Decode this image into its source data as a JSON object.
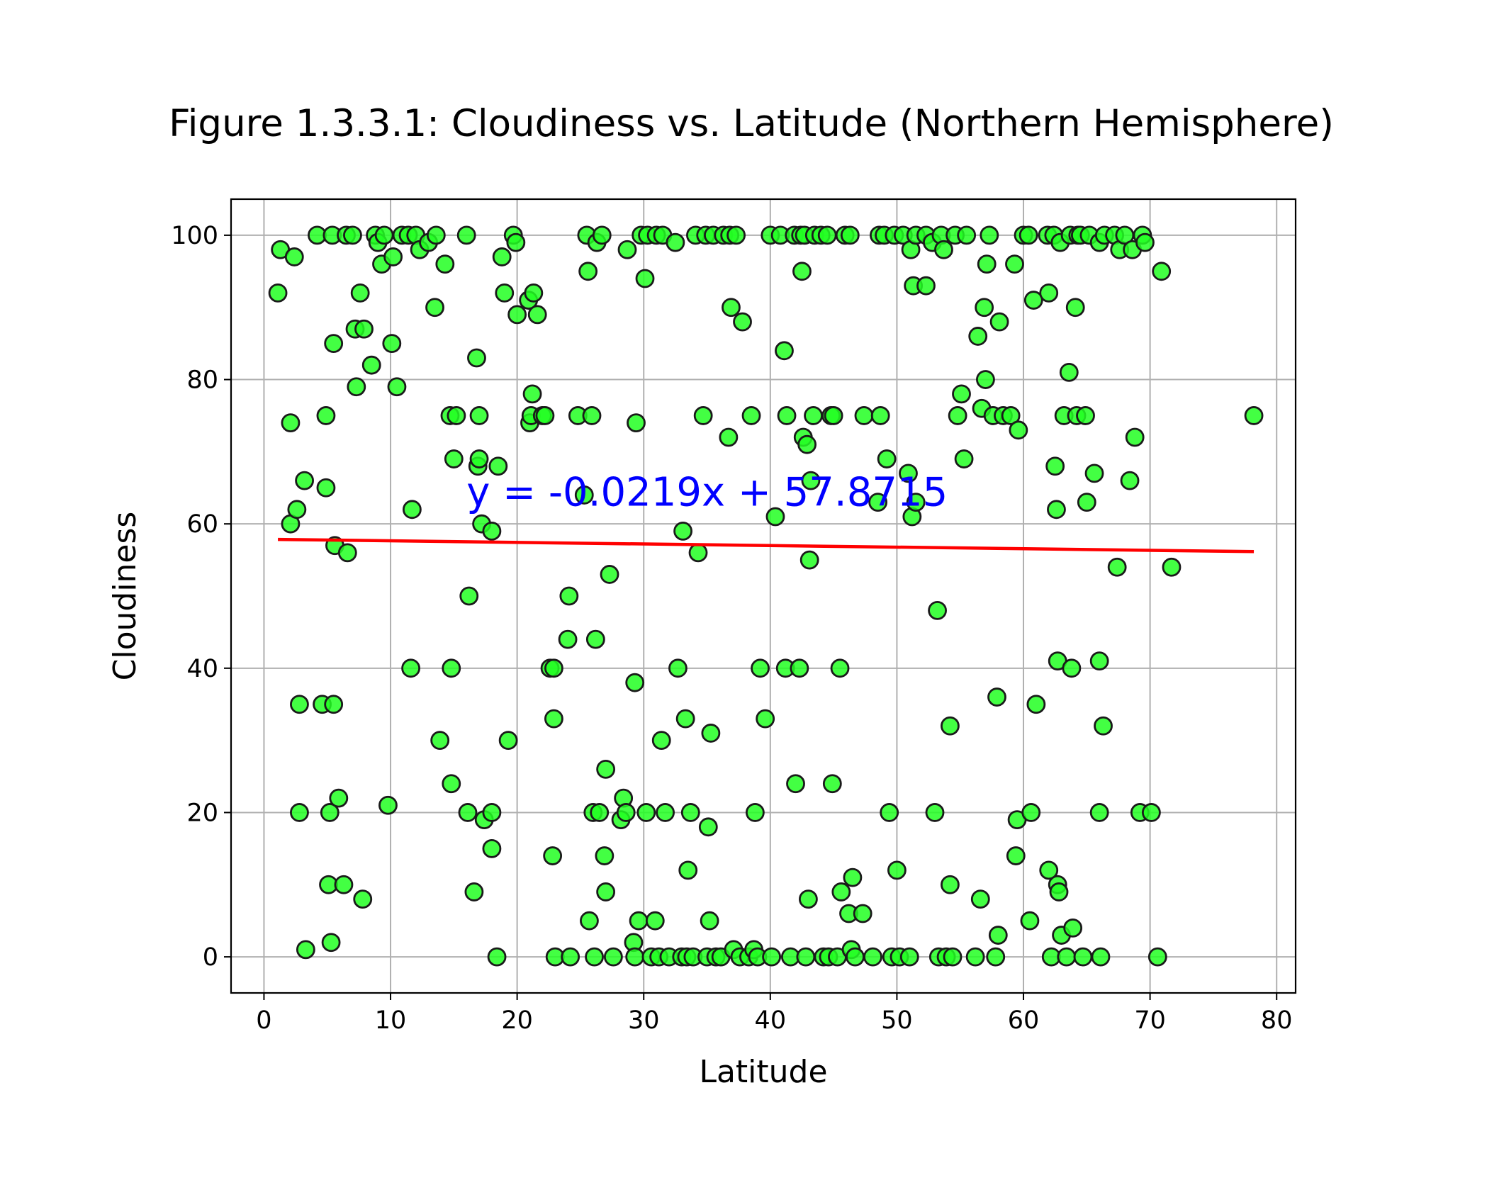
{
  "chart_data": {
    "type": "scatter",
    "title": "Figure 1.3.3.1: Cloudiness vs. Latitude (Northern Hemisphere)",
    "xlabel": "Latitude",
    "ylabel": "Cloudiness",
    "xlim": [
      -2.6,
      81.5
    ],
    "ylim": [
      -5,
      105
    ],
    "xticks": [
      "0",
      "10",
      "20",
      "30",
      "40",
      "50",
      "60",
      "70",
      "80"
    ],
    "yticks": [
      "0",
      "20",
      "40",
      "60",
      "80",
      "100"
    ],
    "grid": true,
    "marker_color": "#22ff22",
    "marker_edge_color": "#1a1a1a",
    "regression": {
      "equation": "y = -0.0219x + 57.8715",
      "slope": -0.0219,
      "intercept": 57.8715,
      "x_range": [
        1.1,
        78.2
      ],
      "label_position": [
        16,
        62.5
      ],
      "color": "#ff0000",
      "label_color": "#0000ff"
    },
    "points": [
      [
        1.1,
        92
      ],
      [
        1.3,
        98
      ],
      [
        2.1,
        74
      ],
      [
        2.1,
        60
      ],
      [
        2.4,
        97
      ],
      [
        2.6,
        62
      ],
      [
        2.8,
        35
      ],
      [
        2.8,
        20
      ],
      [
        3.2,
        66
      ],
      [
        3.3,
        1
      ],
      [
        4.2,
        100
      ],
      [
        4.6,
        35
      ],
      [
        4.9,
        65
      ],
      [
        4.9,
        75
      ],
      [
        5.1,
        10
      ],
      [
        5.2,
        20
      ],
      [
        5.3,
        2
      ],
      [
        5.4,
        100
      ],
      [
        5.5,
        35
      ],
      [
        5.5,
        85
      ],
      [
        5.6,
        57
      ],
      [
        5.9,
        22
      ],
      [
        6.3,
        10
      ],
      [
        6.5,
        100
      ],
      [
        6.6,
        56
      ],
      [
        7.0,
        100
      ],
      [
        7.2,
        87
      ],
      [
        7.3,
        79
      ],
      [
        7.6,
        92
      ],
      [
        7.8,
        8
      ],
      [
        7.9,
        87
      ],
      [
        8.5,
        82
      ],
      [
        8.8,
        100
      ],
      [
        9.0,
        99
      ],
      [
        9.3,
        96
      ],
      [
        9.5,
        100
      ],
      [
        9.8,
        21
      ],
      [
        10.1,
        85
      ],
      [
        10.2,
        97
      ],
      [
        10.5,
        79
      ],
      [
        10.9,
        100
      ],
      [
        11.4,
        100
      ],
      [
        11.6,
        40
      ],
      [
        11.7,
        62
      ],
      [
        12.0,
        100
      ],
      [
        12.3,
        98
      ],
      [
        13.0,
        99
      ],
      [
        13.5,
        90
      ],
      [
        13.6,
        100
      ],
      [
        13.9,
        30
      ],
      [
        14.3,
        96
      ],
      [
        14.7,
        75
      ],
      [
        14.8,
        40
      ],
      [
        14.8,
        24
      ],
      [
        15.0,
        69
      ],
      [
        15.2,
        75
      ],
      [
        16.0,
        100
      ],
      [
        16.1,
        20
      ],
      [
        16.2,
        50
      ],
      [
        16.6,
        9
      ],
      [
        16.8,
        83
      ],
      [
        16.9,
        68
      ],
      [
        17.0,
        69
      ],
      [
        17.0,
        75
      ],
      [
        17.2,
        60
      ],
      [
        17.4,
        19
      ],
      [
        18.0,
        20
      ],
      [
        18.0,
        59
      ],
      [
        18.0,
        15
      ],
      [
        18.4,
        0
      ],
      [
        18.5,
        68
      ],
      [
        18.8,
        97
      ],
      [
        19.0,
        92
      ],
      [
        19.3,
        30
      ],
      [
        19.7,
        100
      ],
      [
        19.9,
        99
      ],
      [
        20.0,
        89
      ],
      [
        20.9,
        91
      ],
      [
        21.0,
        74
      ],
      [
        21.1,
        75
      ],
      [
        21.2,
        78
      ],
      [
        21.3,
        92
      ],
      [
        21.6,
        89
      ],
      [
        22.0,
        75
      ],
      [
        22.2,
        75
      ],
      [
        22.6,
        40
      ],
      [
        22.8,
        14
      ],
      [
        22.9,
        33
      ],
      [
        22.9,
        40
      ],
      [
        23.0,
        0
      ],
      [
        24.0,
        44
      ],
      [
        24.1,
        50
      ],
      [
        24.2,
        0
      ],
      [
        24.8,
        75
      ],
      [
        25.3,
        64
      ],
      [
        25.5,
        100
      ],
      [
        25.6,
        95
      ],
      [
        25.7,
        5
      ],
      [
        25.9,
        75
      ],
      [
        26.0,
        20
      ],
      [
        26.1,
        0
      ],
      [
        26.2,
        44
      ],
      [
        26.3,
        99
      ],
      [
        26.5,
        20
      ],
      [
        26.7,
        100
      ],
      [
        26.9,
        14
      ],
      [
        27.0,
        9
      ],
      [
        27.0,
        26
      ],
      [
        27.3,
        53
      ],
      [
        27.6,
        0
      ],
      [
        28.2,
        19
      ],
      [
        28.4,
        22
      ],
      [
        28.6,
        20
      ],
      [
        28.7,
        98
      ],
      [
        29.2,
        2
      ],
      [
        29.3,
        0
      ],
      [
        29.3,
        38
      ],
      [
        29.4,
        74
      ],
      [
        29.6,
        5
      ],
      [
        29.8,
        100
      ],
      [
        30.1,
        94
      ],
      [
        30.2,
        20
      ],
      [
        30.3,
        100
      ],
      [
        30.6,
        0
      ],
      [
        30.9,
        5
      ],
      [
        31.0,
        100
      ],
      [
        31.2,
        0
      ],
      [
        31.4,
        30
      ],
      [
        31.5,
        100
      ],
      [
        31.7,
        20
      ],
      [
        32.0,
        0
      ],
      [
        32.5,
        99
      ],
      [
        32.7,
        40
      ],
      [
        33.0,
        0
      ],
      [
        33.1,
        59
      ],
      [
        33.3,
        33
      ],
      [
        33.4,
        0
      ],
      [
        33.5,
        12
      ],
      [
        33.7,
        20
      ],
      [
        33.9,
        0
      ],
      [
        34.1,
        100
      ],
      [
        34.3,
        56
      ],
      [
        34.7,
        75
      ],
      [
        34.9,
        100
      ],
      [
        35.0,
        0
      ],
      [
        35.1,
        18
      ],
      [
        35.2,
        5
      ],
      [
        35.3,
        31
      ],
      [
        35.5,
        100
      ],
      [
        35.7,
        0
      ],
      [
        36.1,
        0
      ],
      [
        36.3,
        100
      ],
      [
        36.7,
        72
      ],
      [
        36.8,
        100
      ],
      [
        36.9,
        90
      ],
      [
        37.1,
        1
      ],
      [
        37.3,
        100
      ],
      [
        37.6,
        0
      ],
      [
        37.8,
        88
      ],
      [
        38.3,
        0
      ],
      [
        38.5,
        75
      ],
      [
        38.7,
        1
      ],
      [
        38.8,
        20
      ],
      [
        39.0,
        0
      ],
      [
        39.2,
        40
      ],
      [
        39.6,
        33
      ],
      [
        40.0,
        100
      ],
      [
        40.1,
        0
      ],
      [
        40.4,
        61
      ],
      [
        40.8,
        100
      ],
      [
        41.1,
        84
      ],
      [
        41.2,
        40
      ],
      [
        41.3,
        75
      ],
      [
        41.6,
        0
      ],
      [
        41.9,
        100
      ],
      [
        42.0,
        24
      ],
      [
        42.3,
        40
      ],
      [
        42.4,
        100
      ],
      [
        42.5,
        95
      ],
      [
        42.6,
        72
      ],
      [
        42.7,
        100
      ],
      [
        42.8,
        0
      ],
      [
        42.9,
        71
      ],
      [
        43.0,
        8
      ],
      [
        43.1,
        55
      ],
      [
        43.2,
        66
      ],
      [
        43.4,
        75
      ],
      [
        43.5,
        100
      ],
      [
        44.0,
        100
      ],
      [
        44.2,
        0
      ],
      [
        44.5,
        100
      ],
      [
        44.6,
        0
      ],
      [
        44.8,
        75
      ],
      [
        44.9,
        24
      ],
      [
        45.0,
        75
      ],
      [
        45.3,
        0
      ],
      [
        45.5,
        40
      ],
      [
        45.6,
        9
      ],
      [
        45.9,
        100
      ],
      [
        46.2,
        6
      ],
      [
        46.3,
        100
      ],
      [
        46.4,
        1
      ],
      [
        46.5,
        11
      ],
      [
        46.7,
        0
      ],
      [
        47.3,
        6
      ],
      [
        47.4,
        75
      ],
      [
        48.1,
        0
      ],
      [
        48.5,
        63
      ],
      [
        48.6,
        100
      ],
      [
        48.7,
        75
      ],
      [
        49.0,
        100
      ],
      [
        49.2,
        69
      ],
      [
        49.4,
        20
      ],
      [
        49.6,
        0
      ],
      [
        49.8,
        100
      ],
      [
        50.0,
        12
      ],
      [
        50.2,
        0
      ],
      [
        50.5,
        100
      ],
      [
        50.9,
        67
      ],
      [
        51.0,
        0
      ],
      [
        51.1,
        98
      ],
      [
        51.2,
        61
      ],
      [
        51.3,
        93
      ],
      [
        51.5,
        63
      ],
      [
        51.5,
        100
      ],
      [
        52.3,
        93
      ],
      [
        52.3,
        100
      ],
      [
        52.8,
        99
      ],
      [
        53.0,
        20
      ],
      [
        53.2,
        48
      ],
      [
        53.3,
        0
      ],
      [
        53.5,
        100
      ],
      [
        53.7,
        98
      ],
      [
        53.9,
        0
      ],
      [
        54.2,
        32
      ],
      [
        54.2,
        10
      ],
      [
        54.4,
        0
      ],
      [
        54.6,
        100
      ],
      [
        54.8,
        75
      ],
      [
        55.1,
        78
      ],
      [
        55.3,
        69
      ],
      [
        55.5,
        100
      ],
      [
        56.2,
        0
      ],
      [
        56.4,
        86
      ],
      [
        56.6,
        8
      ],
      [
        56.7,
        76
      ],
      [
        56.9,
        90
      ],
      [
        57.0,
        80
      ],
      [
        57.1,
        96
      ],
      [
        57.3,
        100
      ],
      [
        57.6,
        75
      ],
      [
        57.8,
        0
      ],
      [
        57.9,
        36
      ],
      [
        58.0,
        3
      ],
      [
        58.1,
        88
      ],
      [
        58.4,
        75
      ],
      [
        59.0,
        75
      ],
      [
        59.3,
        96
      ],
      [
        59.4,
        14
      ],
      [
        59.5,
        19
      ],
      [
        59.6,
        73
      ],
      [
        60.0,
        100
      ],
      [
        60.4,
        100
      ],
      [
        60.5,
        5
      ],
      [
        60.6,
        20
      ],
      [
        60.8,
        91
      ],
      [
        61.0,
        35
      ],
      [
        61.9,
        100
      ],
      [
        62.0,
        12
      ],
      [
        62.0,
        92
      ],
      [
        62.2,
        0
      ],
      [
        62.4,
        100
      ],
      [
        62.5,
        68
      ],
      [
        62.6,
        62
      ],
      [
        62.7,
        41
      ],
      [
        62.7,
        10
      ],
      [
        62.8,
        9
      ],
      [
        62.9,
        99
      ],
      [
        63.0,
        3
      ],
      [
        63.2,
        75
      ],
      [
        63.4,
        0
      ],
      [
        63.6,
        81
      ],
      [
        63.7,
        100
      ],
      [
        63.8,
        40
      ],
      [
        63.9,
        4
      ],
      [
        64.1,
        90
      ],
      [
        64.2,
        75
      ],
      [
        64.3,
        100
      ],
      [
        64.5,
        100
      ],
      [
        64.7,
        0
      ],
      [
        64.9,
        75
      ],
      [
        65.0,
        63
      ],
      [
        65.2,
        100
      ],
      [
        65.6,
        67
      ],
      [
        66.0,
        99
      ],
      [
        66.0,
        41
      ],
      [
        66.0,
        20
      ],
      [
        66.1,
        0
      ],
      [
        66.3,
        32
      ],
      [
        66.4,
        100
      ],
      [
        67.2,
        100
      ],
      [
        67.4,
        54
      ],
      [
        67.6,
        98
      ],
      [
        68.0,
        100
      ],
      [
        68.4,
        66
      ],
      [
        68.6,
        98
      ],
      [
        68.8,
        72
      ],
      [
        69.2,
        20
      ],
      [
        69.4,
        100
      ],
      [
        69.6,
        99
      ],
      [
        70.1,
        20
      ],
      [
        70.6,
        0
      ],
      [
        70.9,
        95
      ],
      [
        71.7,
        54
      ],
      [
        78.2,
        75
      ]
    ]
  }
}
